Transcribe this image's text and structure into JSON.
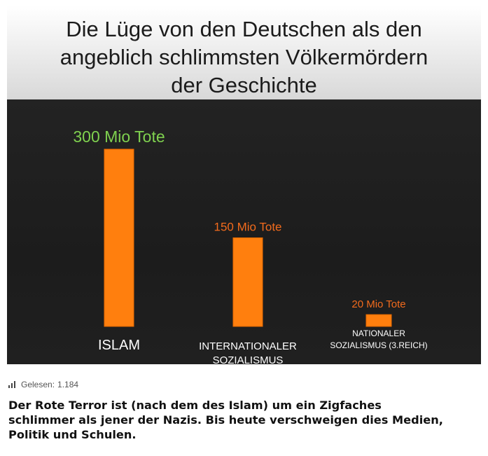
{
  "chart_data": {
    "type": "bar",
    "title_lines": [
      "Die Lüge von den Deutschen als den",
      "angeblich schlimmsten Völkermördern",
      "der Geschichte"
    ],
    "categories": [
      [
        "ISLAM"
      ],
      [
        "INTERNATIONALER",
        "SOZIALISMUS"
      ],
      [
        "NATIONALER",
        "SOZIALISMUS (3.REICH)"
      ]
    ],
    "values": [
      300,
      150,
      20
    ],
    "data_labels": [
      "300 Mio Tote",
      "150 Mio Tote",
      "20 Mio Tote"
    ],
    "ylim": [
      0,
      300
    ],
    "grid": false,
    "colors": {
      "bar": "#ff7f0e",
      "bar_edge": "#e86a00",
      "label_first": "#7fd14f",
      "label_other": "#f26b1d",
      "category_text": "#ffffff",
      "background": "#1e1e1e"
    }
  },
  "footer": {
    "icon": "bar-chart-icon",
    "reads_label": "Gelesen:",
    "reads_value": "1.184",
    "caption": "Der Rote Terror ist (nach dem des Islam) um ein Zigfaches\nschlimmer als jener der Nazis. Bis heute verschweigen dies  Medien,\nPolitik und Schulen."
  }
}
